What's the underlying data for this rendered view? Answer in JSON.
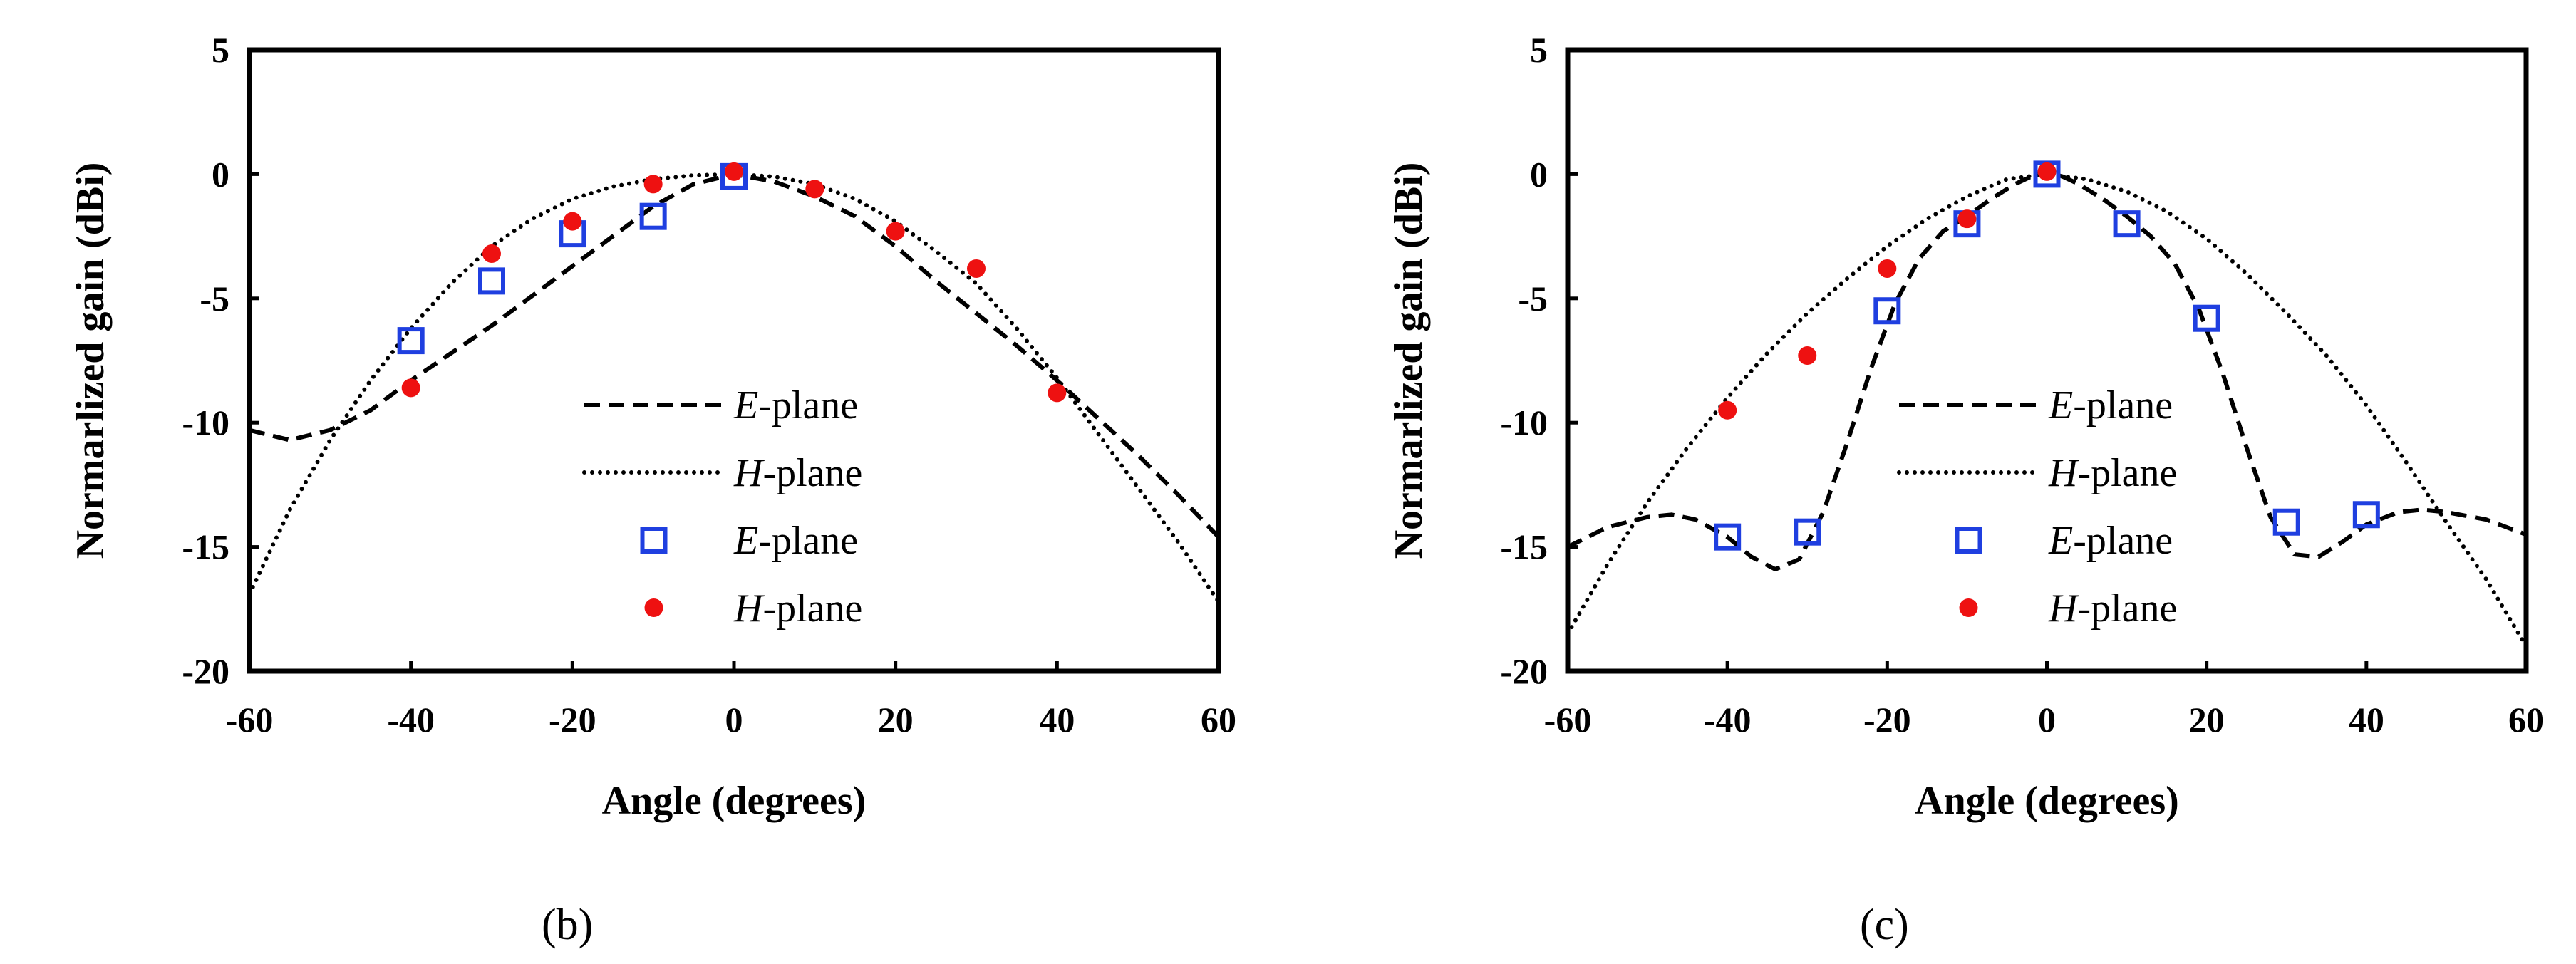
{
  "chart_data": [
    {
      "type": "line",
      "panel_label": "b",
      "panel_label_text": "(b)",
      "xlabel": "Angle (degrees)",
      "ylabel": "Normarlized gain (dBi)",
      "xlim": [
        -60,
        60
      ],
      "ylim": [
        -20,
        5
      ],
      "xticks": [
        -60,
        -40,
        -20,
        0,
        20,
        40,
        60
      ],
      "yticks": [
        5,
        0,
        -5,
        -10,
        -15,
        -20
      ],
      "legend_position": "lower-center",
      "series": [
        {
          "name": "E-plane",
          "legend_italic": "E",
          "legend_rest": "-plane",
          "kind": "line",
          "style": "dashed",
          "color": "#000000",
          "x": [
            -60,
            -55,
            -50,
            -45,
            -40,
            -35,
            -30,
            -25,
            -20,
            -15,
            -10,
            -5,
            0,
            5,
            10,
            15,
            20,
            25,
            30,
            35,
            40,
            45,
            50,
            55,
            60
          ],
          "y": [
            -10.3,
            -10.7,
            -10.3,
            -9.5,
            -8.3,
            -7.2,
            -6.1,
            -4.9,
            -3.7,
            -2.5,
            -1.3,
            -0.4,
            0,
            -0.3,
            -0.9,
            -1.7,
            -2.9,
            -4.3,
            -5.6,
            -6.9,
            -8.3,
            -9.8,
            -11.3,
            -12.9,
            -14.6
          ]
        },
        {
          "name": "H-plane",
          "legend_italic": "H",
          "legend_rest": "-plane",
          "kind": "line",
          "style": "dotted",
          "color": "#000000",
          "x": [
            -60,
            -55,
            -50,
            -45,
            -40,
            -35,
            -30,
            -25,
            -20,
            -15,
            -10,
            -5,
            0,
            5,
            10,
            15,
            20,
            25,
            30,
            35,
            40,
            45,
            50,
            55,
            60
          ],
          "y": [
            -16.9,
            -13.5,
            -10.7,
            -8.3,
            -6.2,
            -4.4,
            -2.9,
            -1.8,
            -1.0,
            -0.5,
            -0.2,
            -0.05,
            0,
            -0.1,
            -0.4,
            -1.0,
            -1.9,
            -3.1,
            -4.4,
            -6.2,
            -8.2,
            -10.4,
            -12.6,
            -14.8,
            -17.2
          ]
        },
        {
          "name": "E-plane",
          "legend_italic": "E",
          "legend_rest": "-plane",
          "kind": "marker",
          "marker": "square",
          "color": "#1f3fe0",
          "x": [
            -40,
            -30,
            -20,
            -10,
            0
          ],
          "y": [
            -6.7,
            -4.3,
            -2.4,
            -1.7,
            -0.1
          ]
        },
        {
          "name": "H-plane",
          "legend_italic": "H",
          "legend_rest": "-plane",
          "kind": "marker",
          "marker": "circle",
          "color": "#ee1111",
          "x": [
            -40,
            -30,
            -20,
            -10,
            0,
            10,
            20,
            30,
            40
          ],
          "y": [
            -8.6,
            -3.2,
            -1.9,
            -0.4,
            0.1,
            -0.6,
            -2.3,
            -3.8,
            -8.8
          ]
        }
      ]
    },
    {
      "type": "line",
      "panel_label": "c",
      "panel_label_text": "(c)",
      "xlabel": "Angle (degrees)",
      "ylabel": "Normarlized gain (dBi)",
      "xlim": [
        -60,
        60
      ],
      "ylim": [
        -20,
        5
      ],
      "xticks": [
        -60,
        -40,
        -20,
        0,
        20,
        40,
        60
      ],
      "yticks": [
        5,
        0,
        -5,
        -10,
        -15,
        -20
      ],
      "legend_position": "lower-center",
      "series": [
        {
          "name": "E-plane",
          "legend_italic": "E",
          "legend_rest": "-plane",
          "kind": "line",
          "style": "dashed",
          "color": "#000000",
          "x": [
            -60,
            -55,
            -50,
            -47,
            -44,
            -40,
            -37,
            -34,
            -31,
            -28,
            -25,
            -22,
            -19,
            -16,
            -13,
            -10,
            -7,
            -4,
            -2,
            0,
            2,
            4,
            7,
            10,
            13,
            16,
            19,
            22,
            25,
            28,
            31,
            34,
            37,
            40,
            44,
            47,
            50,
            55,
            60
          ],
          "y": [
            -15.0,
            -14.2,
            -13.8,
            -13.7,
            -13.9,
            -14.6,
            -15.4,
            -15.9,
            -15.5,
            -13.6,
            -10.8,
            -7.8,
            -5.2,
            -3.4,
            -2.3,
            -1.7,
            -1.0,
            -0.4,
            -0.1,
            0.1,
            -0.1,
            -0.4,
            -1.0,
            -1.7,
            -2.5,
            -3.6,
            -5.4,
            -8.0,
            -11.0,
            -13.8,
            -15.3,
            -15.4,
            -14.8,
            -14.1,
            -13.6,
            -13.5,
            -13.6,
            -13.9,
            -14.5
          ]
        },
        {
          "name": "H-plane",
          "legend_italic": "H",
          "legend_rest": "-plane",
          "kind": "line",
          "style": "dotted",
          "color": "#000000",
          "x": [
            -60,
            -55,
            -50,
            -45,
            -40,
            -35,
            -30,
            -25,
            -20,
            -15,
            -10,
            -5,
            0,
            5,
            10,
            15,
            20,
            25,
            30,
            35,
            40,
            45,
            50,
            55,
            60
          ],
          "y": [
            -18.5,
            -15.7,
            -13.2,
            -11.0,
            -9.0,
            -7.2,
            -5.6,
            -4.2,
            -2.9,
            -1.8,
            -0.9,
            -0.2,
            0,
            -0.2,
            -0.7,
            -1.5,
            -2.6,
            -4.0,
            -5.6,
            -7.3,
            -9.3,
            -11.6,
            -14.0,
            -16.3,
            -19.0
          ]
        },
        {
          "name": "E-plane",
          "legend_italic": "E",
          "legend_rest": "-plane",
          "kind": "marker",
          "marker": "square",
          "color": "#1f3fe0",
          "x": [
            -40,
            -30,
            -20,
            -10,
            0,
            10,
            20,
            30,
            40
          ],
          "y": [
            -14.6,
            -14.4,
            -5.5,
            -2.0,
            0,
            -2.0,
            -5.8,
            -14.0,
            -13.7
          ]
        },
        {
          "name": "H-plane",
          "legend_italic": "H",
          "legend_rest": "-plane",
          "kind": "marker",
          "marker": "circle",
          "color": "#ee1111",
          "x": [
            -40,
            -30,
            -20,
            -10,
            0
          ],
          "y": [
            -9.5,
            -7.3,
            -3.8,
            -1.8,
            0.1
          ]
        }
      ]
    }
  ]
}
